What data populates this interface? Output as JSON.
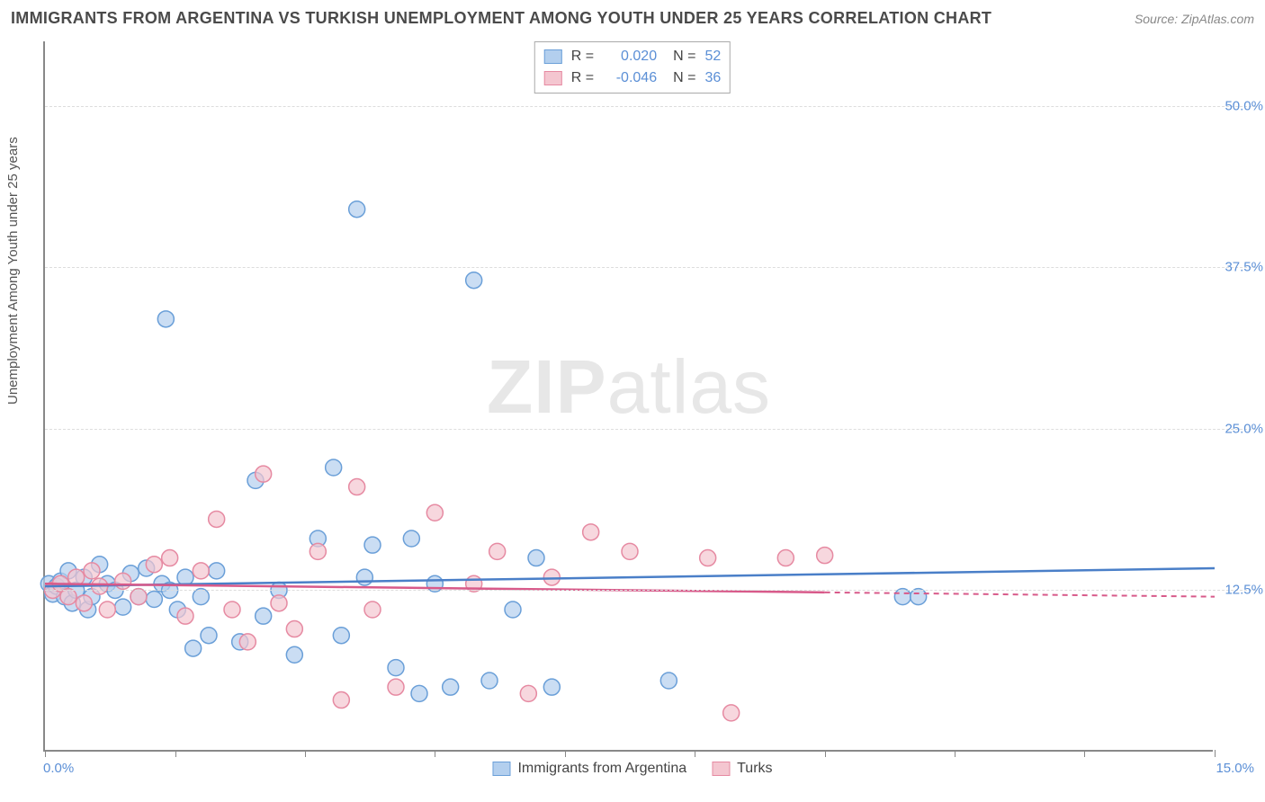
{
  "title": "IMMIGRANTS FROM ARGENTINA VS TURKISH UNEMPLOYMENT AMONG YOUTH UNDER 25 YEARS CORRELATION CHART",
  "source": "Source: ZipAtlas.com",
  "y_axis_label": "Unemployment Among Youth under 25 years",
  "watermark_bold": "ZIP",
  "watermark_light": "atlas",
  "chart": {
    "type": "scatter",
    "xlim": [
      0,
      15
    ],
    "ylim": [
      0,
      55
    ],
    "yticks": [
      {
        "v": 12.5,
        "label": "12.5%"
      },
      {
        "v": 25.0,
        "label": "25.0%"
      },
      {
        "v": 37.5,
        "label": "37.5%"
      },
      {
        "v": 50.0,
        "label": "50.0%"
      }
    ],
    "xtick_positions": [
      0,
      1.67,
      3.33,
      5.0,
      6.67,
      8.33,
      10.0,
      11.67,
      13.33,
      15.0
    ],
    "xlabel_min": "0.0%",
    "xlabel_max": "15.0%",
    "background_color": "#ffffff",
    "grid_color": "#dddddd",
    "series": [
      {
        "name": "Immigrants from Argentina",
        "color_fill": "#b3cfee",
        "color_stroke": "#6a9fd8",
        "marker_radius": 9,
        "marker_opacity": 0.7,
        "trend": {
          "x1": 0,
          "y1": 12.8,
          "x2": 15,
          "y2": 14.2,
          "color": "#4a7fc8",
          "dash_after_x": 15
        },
        "R": "0.020",
        "N": "52",
        "points": [
          [
            0.05,
            13.0
          ],
          [
            0.1,
            12.2
          ],
          [
            0.15,
            12.8
          ],
          [
            0.2,
            13.2
          ],
          [
            0.25,
            12.0
          ],
          [
            0.3,
            14.0
          ],
          [
            0.35,
            11.5
          ],
          [
            0.4,
            12.5
          ],
          [
            0.5,
            13.5
          ],
          [
            0.55,
            11.0
          ],
          [
            0.6,
            12.0
          ],
          [
            0.7,
            14.5
          ],
          [
            0.8,
            13.0
          ],
          [
            0.9,
            12.5
          ],
          [
            1.0,
            11.2
          ],
          [
            1.1,
            13.8
          ],
          [
            1.2,
            12.0
          ],
          [
            1.3,
            14.2
          ],
          [
            1.4,
            11.8
          ],
          [
            1.5,
            13.0
          ],
          [
            1.55,
            33.5
          ],
          [
            1.6,
            12.5
          ],
          [
            1.7,
            11.0
          ],
          [
            1.8,
            13.5
          ],
          [
            1.9,
            8.0
          ],
          [
            2.0,
            12.0
          ],
          [
            2.1,
            9.0
          ],
          [
            2.2,
            14.0
          ],
          [
            2.5,
            8.5
          ],
          [
            2.7,
            21.0
          ],
          [
            2.8,
            10.5
          ],
          [
            3.0,
            12.5
          ],
          [
            3.2,
            7.5
          ],
          [
            3.5,
            16.5
          ],
          [
            3.7,
            22.0
          ],
          [
            3.8,
            9.0
          ],
          [
            4.0,
            42.0
          ],
          [
            4.1,
            13.5
          ],
          [
            4.2,
            16.0
          ],
          [
            4.5,
            6.5
          ],
          [
            4.7,
            16.5
          ],
          [
            4.8,
            4.5
          ],
          [
            5.0,
            13.0
          ],
          [
            5.2,
            5.0
          ],
          [
            5.5,
            36.5
          ],
          [
            5.7,
            5.5
          ],
          [
            6.0,
            11.0
          ],
          [
            6.3,
            15.0
          ],
          [
            6.5,
            5.0
          ],
          [
            8.0,
            5.5
          ],
          [
            11.0,
            12.0
          ],
          [
            11.2,
            12.0
          ]
        ]
      },
      {
        "name": "Turks",
        "color_fill": "#f4c6d0",
        "color_stroke": "#e68aa2",
        "marker_radius": 9,
        "marker_opacity": 0.7,
        "trend": {
          "x1": 0,
          "y1": 13.0,
          "x2": 15,
          "y2": 12.0,
          "color": "#d85a8a",
          "dash_after_x": 10
        },
        "R": "-0.046",
        "N": "36",
        "points": [
          [
            0.1,
            12.5
          ],
          [
            0.2,
            13.0
          ],
          [
            0.3,
            12.0
          ],
          [
            0.4,
            13.5
          ],
          [
            0.5,
            11.5
          ],
          [
            0.6,
            14.0
          ],
          [
            0.7,
            12.8
          ],
          [
            0.8,
            11.0
          ],
          [
            1.0,
            13.2
          ],
          [
            1.2,
            12.0
          ],
          [
            1.4,
            14.5
          ],
          [
            1.6,
            15.0
          ],
          [
            1.8,
            10.5
          ],
          [
            2.0,
            14.0
          ],
          [
            2.2,
            18.0
          ],
          [
            2.4,
            11.0
          ],
          [
            2.6,
            8.5
          ],
          [
            2.8,
            21.5
          ],
          [
            3.0,
            11.5
          ],
          [
            3.2,
            9.5
          ],
          [
            3.5,
            15.5
          ],
          [
            3.8,
            4.0
          ],
          [
            4.0,
            20.5
          ],
          [
            4.2,
            11.0
          ],
          [
            4.5,
            5.0
          ],
          [
            5.0,
            18.5
          ],
          [
            5.5,
            13.0
          ],
          [
            5.8,
            15.5
          ],
          [
            6.5,
            13.5
          ],
          [
            7.0,
            17.0
          ],
          [
            7.5,
            15.5
          ],
          [
            8.5,
            15.0
          ],
          [
            8.8,
            3.0
          ],
          [
            9.5,
            15.0
          ],
          [
            10.0,
            15.2
          ],
          [
            6.2,
            4.5
          ]
        ]
      }
    ]
  },
  "stats_legend": {
    "label_R": "R =",
    "label_N": "N ="
  }
}
